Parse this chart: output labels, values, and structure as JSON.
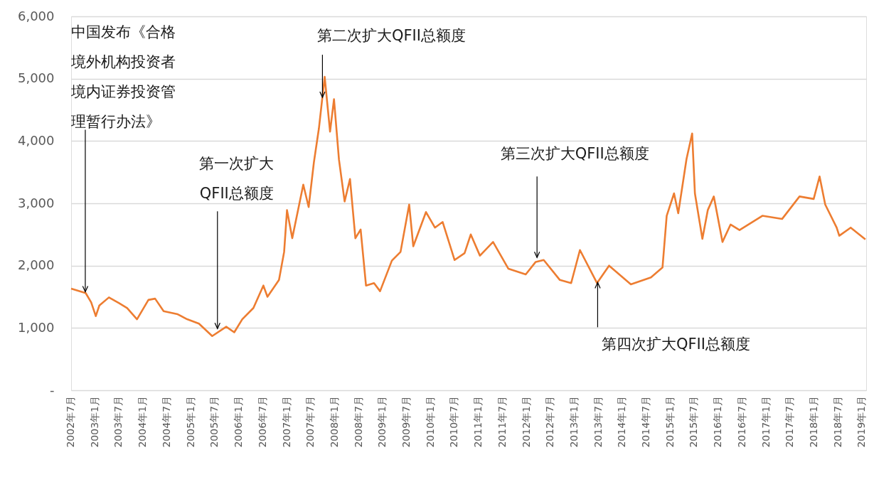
{
  "chart_data": {
    "type": "line",
    "x": [
      "2002-07-01",
      "2002-10-20",
      "2002-12-01",
      "2003-01-05",
      "2003-02-01",
      "2003-04-15",
      "2003-07-01",
      "2003-09-01",
      "2003-11-15",
      "2004-02-10",
      "2004-04-01",
      "2004-06-05",
      "2004-09-20",
      "2004-12-01",
      "2005-03-01",
      "2005-06-10",
      "2005-09-25",
      "2005-11-25",
      "2006-01-25",
      "2006-04-20",
      "2006-07-05",
      "2006-08-05",
      "2006-11-01",
      "2006-12-10",
      "2007-01-01",
      "2007-02-10",
      "2007-05-05",
      "2007-06-15",
      "2007-07-25",
      "2007-09-01",
      "2007-10-15",
      "2007-11-25",
      "2007-12-25",
      "2008-02-01",
      "2008-03-15",
      "2008-04-25",
      "2008-06-05",
      "2008-07-15",
      "2008-08-25",
      "2008-10-25",
      "2008-12-10",
      "2009-03-10",
      "2009-05-15",
      "2009-07-20",
      "2009-08-20",
      "2009-11-25",
      "2010-02-01",
      "2010-04-01",
      "2010-07-01",
      "2010-09-15",
      "2010-11-01",
      "2011-01-10",
      "2011-04-20",
      "2011-08-15",
      "2011-12-25",
      "2012-03-10",
      "2012-05-10",
      "2012-09-10",
      "2012-12-05",
      "2013-02-10",
      "2013-06-20",
      "2013-09-20",
      "2014-03-05",
      "2014-08-05",
      "2014-11-01",
      "2014-12-03",
      "2015-01-28",
      "2015-03-01",
      "2015-05-03",
      "2015-06-15",
      "2015-07-06",
      "2015-09-01",
      "2015-10-12",
      "2015-11-27",
      "2016-02-01",
      "2016-04-03",
      "2016-06-10",
      "2016-12-01",
      "2017-05-01",
      "2017-09-10",
      "2017-12-27",
      "2018-02-10",
      "2018-03-25",
      "2018-06-20",
      "2018-07-10",
      "2018-10-05",
      "2019-01-25"
    ],
    "series": [
      {
        "color": "#ed7d31",
        "values": [
          1630,
          1560,
          1410,
          1190,
          1360,
          1490,
          1400,
          1320,
          1140,
          1450,
          1470,
          1270,
          1220,
          1140,
          1070,
          870,
          1020,
          930,
          1140,
          1320,
          1680,
          1500,
          1770,
          2220,
          2890,
          2440,
          3300,
          2940,
          3660,
          4200,
          5030,
          4150,
          4670,
          3700,
          3030,
          3390,
          2440,
          2580,
          1680,
          1720,
          1590,
          2080,
          2220,
          2980,
          2310,
          2860,
          2610,
          2700,
          2090,
          2200,
          2500,
          2160,
          2380,
          1950,
          1860,
          2060,
          2090,
          1770,
          1720,
          2250,
          1720,
          2000,
          1700,
          1810,
          1970,
          2800,
          3160,
          2840,
          3710,
          4120,
          3160,
          2430,
          2890,
          3110,
          2380,
          2660,
          2570,
          2800,
          2750,
          3110,
          3070,
          3430,
          2980,
          2610,
          2480,
          2610,
          2420
        ]
      }
    ],
    "xlim": [
      "2002-07-01",
      "2019-01-31"
    ],
    "xticks": [
      {
        "value": "2002-07",
        "label": "2002年7月"
      },
      {
        "value": "2003-01",
        "label": "2003年1月"
      },
      {
        "value": "2003-07",
        "label": "2003年7月"
      },
      {
        "value": "2004-01",
        "label": "2004年1月"
      },
      {
        "value": "2004-07",
        "label": "2004年7月"
      },
      {
        "value": "2005-01",
        "label": "2005年1月"
      },
      {
        "value": "2005-07",
        "label": "2005年7月"
      },
      {
        "value": "2006-01",
        "label": "2006年1月"
      },
      {
        "value": "2006-07",
        "label": "2006年7月"
      },
      {
        "value": "2007-01",
        "label": "2007年1月"
      },
      {
        "value": "2007-07",
        "label": "2007年7月"
      },
      {
        "value": "2008-01",
        "label": "2008年1月"
      },
      {
        "value": "2008-07",
        "label": "2008年7月"
      },
      {
        "value": "2009-01",
        "label": "2009年1月"
      },
      {
        "value": "2009-07",
        "label": "2009年7月"
      },
      {
        "value": "2010-01",
        "label": "2010年1月"
      },
      {
        "value": "2010-07",
        "label": "2010年7月"
      },
      {
        "value": "2011-01",
        "label": "2011年1月"
      },
      {
        "value": "2011-07",
        "label": "2011年7月"
      },
      {
        "value": "2012-01",
        "label": "2012年1月"
      },
      {
        "value": "2012-07",
        "label": "2012年7月"
      },
      {
        "value": "2013-01",
        "label": "2013年1月"
      },
      {
        "value": "2013-07",
        "label": "2013年7月"
      },
      {
        "value": "2014-01",
        "label": "2014年1月"
      },
      {
        "value": "2014-07",
        "label": "2014年7月"
      },
      {
        "value": "2015-01",
        "label": "2015年1月"
      },
      {
        "value": "2015-07",
        "label": "2015年7月"
      },
      {
        "value": "2016-01",
        "label": "2016年1月"
      },
      {
        "value": "2016-07",
        "label": "2016年7月"
      },
      {
        "value": "2017-01",
        "label": "2017年1月"
      },
      {
        "value": "2017-07",
        "label": "2017年7月"
      },
      {
        "value": "2018-01",
        "label": "2018年1月"
      },
      {
        "value": "2018-07",
        "label": "2018年7月"
      },
      {
        "value": "2019-01",
        "label": "2019年1月"
      }
    ],
    "ylim": [
      0,
      6000
    ],
    "yticks": [
      {
        "value": 0,
        "label": "-"
      },
      {
        "value": 1000,
        "label": "1,000"
      },
      {
        "value": 2000,
        "label": "2,000"
      },
      {
        "value": 3000,
        "label": "3,000"
      },
      {
        "value": 4000,
        "label": "4,000"
      },
      {
        "value": 5000,
        "label": "5,000"
      },
      {
        "value": 6000,
        "label": "6,000"
      }
    ],
    "grid": "y",
    "marker": "none",
    "line_style": "solid",
    "annotations": [
      {
        "text": "中国发布《合格境外机构投资者境内证券投资管理暂行办法》",
        "x": "2002-10-17",
        "y": 1580
      },
      {
        "text": "第一次扩大QFII总额度",
        "x": "2005-07-20",
        "y": 990
      },
      {
        "text": "第二次扩大QFII总额度",
        "x": "2007-09-28",
        "y": 4700
      },
      {
        "text": "第三次扩大QFII总额度",
        "x": "2012-03-20",
        "y": 2130
      },
      {
        "text": "第四次扩大QFII总额度",
        "x": "2013-06-25",
        "y": 1730
      }
    ]
  }
}
